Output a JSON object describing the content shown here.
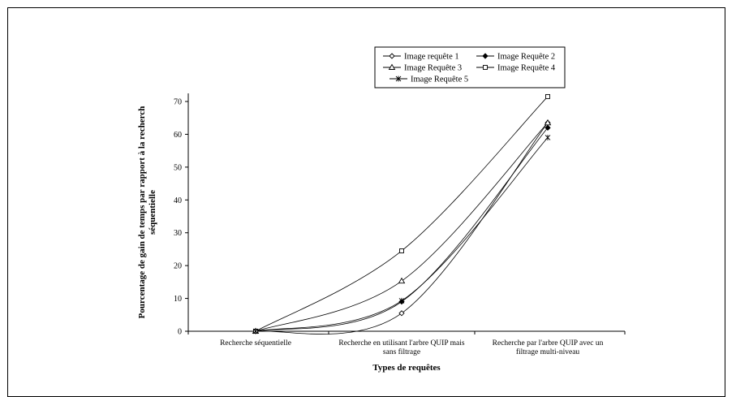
{
  "chart_data": {
    "type": "line",
    "title": "",
    "xlabel": "Types de requêtes",
    "ylabel": "Pourcentage de gain de temps par rapport à la recherch séquentielle",
    "ylabel_lines": [
      "Pourcentage de gain de temps par rapport à la recherch",
      "séquentielle"
    ],
    "ylim": [
      0,
      70
    ],
    "yticks": [
      0,
      10,
      20,
      30,
      40,
      50,
      60,
      70
    ],
    "grid": false,
    "legend_position": "top",
    "categories": [
      "Recherche séquentielle",
      "Recherche en utilisant l'arbre QUIP mais sans filtrage",
      "Recherche par l'arbre QUIP avec un filtrage multi-niveau"
    ],
    "category_lines": [
      [
        "Recherche séquentielle"
      ],
      [
        "Recherche en utilisant l'arbre QUIP mais",
        "sans filtrage"
      ],
      [
        "Recherche par l'arbre QUIP avec un",
        "filtrage multi-niveau"
      ]
    ],
    "series": [
      {
        "name": "Image requête 1",
        "marker": "diamond-open",
        "values": [
          0,
          5.5,
          63.5
        ]
      },
      {
        "name": "Image Requête 2",
        "marker": "diamond-filled",
        "values": [
          0,
          9,
          62
        ]
      },
      {
        "name": "Image Requête 3",
        "marker": "triangle-open",
        "values": [
          0,
          15.3,
          63.5
        ]
      },
      {
        "name": "Image Requête 4",
        "marker": "square-open",
        "values": [
          0,
          24.5,
          71.5
        ]
      },
      {
        "name": "Image Requête 5",
        "marker": "star",
        "values": [
          0,
          9.3,
          59
        ]
      }
    ]
  }
}
